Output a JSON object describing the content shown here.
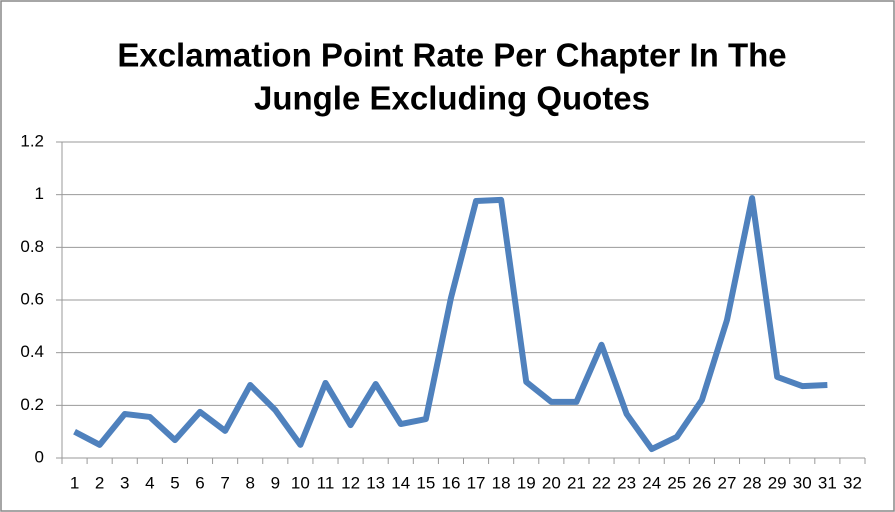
{
  "chart_data": {
    "type": "line",
    "title": [
      "Exclamation Point Rate Per Chapter In The",
      "Jungle Excluding Quotes"
    ],
    "categories": [
      "1",
      "2",
      "3",
      "4",
      "5",
      "6",
      "7",
      "8",
      "9",
      "10",
      "11",
      "12",
      "13",
      "14",
      "15",
      "16",
      "17",
      "18",
      "19",
      "20",
      "21",
      "22",
      "23",
      "24",
      "25",
      "26",
      "27",
      "28",
      "29",
      "30",
      "31",
      "32"
    ],
    "series": [
      {
        "name": "Rate",
        "color": "#4f81bd",
        "values": [
          0.1,
          0.05,
          0.167,
          0.156,
          0.068,
          0.175,
          0.103,
          0.277,
          0.182,
          0.05,
          0.285,
          0.125,
          0.281,
          0.129,
          0.148,
          0.608,
          0.976,
          0.98,
          0.289,
          0.213,
          0.213,
          0.43,
          0.167,
          0.034,
          0.08,
          0.22,
          0.524,
          0.987,
          0.308,
          0.273,
          0.277,
          null
        ]
      }
    ],
    "ylim": [
      0,
      1.2
    ],
    "yticks": [
      0,
      0.2,
      0.4,
      0.6,
      0.8,
      1,
      1.2
    ],
    "grid": true,
    "legend": false
  }
}
